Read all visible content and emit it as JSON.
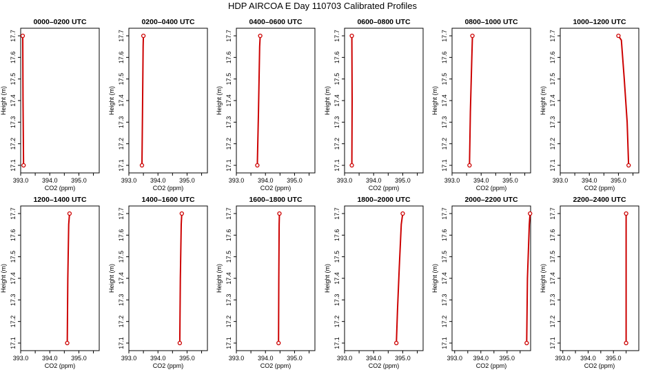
{
  "page_title": "HDP AIRCOA E  Day 110703  Calibrated Profiles",
  "chart_data": [
    {
      "type": "line",
      "title": "0000–0200 UTC",
      "xlabel": "CO2 (ppm)",
      "ylabel": "Height (m)",
      "xlim": [
        393.0,
        395.7
      ],
      "ylim": [
        17.1,
        17.7
      ],
      "xticks": [
        "393.0",
        "394.0",
        "395.0"
      ],
      "yticks": [
        "17.1",
        "17.2",
        "17.3",
        "17.4",
        "17.5",
        "17.6",
        "17.7"
      ],
      "series": [
        {
          "x": [
            393.1,
            393.08,
            393.07
          ],
          "y": [
            17.1,
            17.4,
            17.7
          ]
        }
      ]
    },
    {
      "type": "line",
      "title": "0200–0400 UTC",
      "xlabel": "CO2 (ppm)",
      "ylabel": "Height (m)",
      "xlim": [
        393.0,
        395.7
      ],
      "ylim": [
        17.1,
        17.7
      ],
      "xticks": [
        "393.0",
        "394.0",
        "395.0"
      ],
      "yticks": [
        "17.1",
        "17.2",
        "17.3",
        "17.4",
        "17.5",
        "17.6",
        "17.7"
      ],
      "series": [
        {
          "x": [
            393.45,
            393.47,
            393.49,
            393.5
          ],
          "y": [
            17.1,
            17.35,
            17.65,
            17.7
          ]
        }
      ]
    },
    {
      "type": "line",
      "title": "0400–0600 UTC",
      "xlabel": "CO2 (ppm)",
      "ylabel": "Height (m)",
      "xlim": [
        393.0,
        395.7
      ],
      "ylim": [
        17.1,
        17.7
      ],
      "xticks": [
        "393.0",
        "394.0",
        "395.0"
      ],
      "yticks": [
        "17.1",
        "17.2",
        "17.3",
        "17.4",
        "17.5",
        "17.6",
        "17.7"
      ],
      "series": [
        {
          "x": [
            393.72,
            393.76,
            393.8,
            393.82
          ],
          "y": [
            17.1,
            17.35,
            17.65,
            17.7
          ]
        }
      ]
    },
    {
      "type": "line",
      "title": "0600–0800 UTC",
      "xlabel": "CO2 (ppm)",
      "ylabel": "Height (m)",
      "xlim": [
        393.0,
        395.7
      ],
      "ylim": [
        17.1,
        17.7
      ],
      "xticks": [
        "393.0",
        "394.0",
        "395.0"
      ],
      "yticks": [
        "17.1",
        "17.2",
        "17.3",
        "17.4",
        "17.5",
        "17.6",
        "17.7"
      ],
      "series": [
        {
          "x": [
            393.25,
            393.26,
            393.25
          ],
          "y": [
            17.1,
            17.4,
            17.7
          ]
        }
      ]
    },
    {
      "type": "line",
      "title": "0800–1000 UTC",
      "xlabel": "CO2 (ppm)",
      "ylabel": "Height (m)",
      "xlim": [
        393.0,
        395.7
      ],
      "ylim": [
        17.1,
        17.7
      ],
      "xticks": [
        "393.0",
        "394.0",
        "395.0"
      ],
      "yticks": [
        "17.1",
        "17.2",
        "17.3",
        "17.4",
        "17.5",
        "17.6",
        "17.7"
      ],
      "series": [
        {
          "x": [
            393.6,
            393.63,
            393.68,
            393.7
          ],
          "y": [
            17.1,
            17.35,
            17.6,
            17.7
          ]
        }
      ]
    },
    {
      "type": "line",
      "title": "1000–1200 UTC",
      "xlabel": "CO2 (ppm)",
      "ylabel": "Height (m)",
      "xlim": [
        393.0,
        395.7
      ],
      "ylim": [
        17.1,
        17.7
      ],
      "xticks": [
        "393.0",
        "394.0",
        "395.0"
      ],
      "yticks": [
        "17.1",
        "17.2",
        "17.3",
        "17.4",
        "17.5",
        "17.6",
        "17.7"
      ],
      "series": [
        {
          "x": [
            395.35,
            395.3,
            395.2,
            395.1,
            395.0
          ],
          "y": [
            17.1,
            17.3,
            17.5,
            17.68,
            17.7
          ]
        }
      ]
    },
    {
      "type": "line",
      "title": "1200–1400 UTC",
      "xlabel": "CO2 (ppm)",
      "ylabel": "Height (m)",
      "xlim": [
        393.0,
        395.7
      ],
      "ylim": [
        17.1,
        17.7
      ],
      "xticks": [
        "393.0",
        "394.0",
        "395.0"
      ],
      "yticks": [
        "17.1",
        "17.2",
        "17.3",
        "17.4",
        "17.5",
        "17.6",
        "17.7"
      ],
      "series": [
        {
          "x": [
            394.6,
            394.62,
            394.65,
            394.68
          ],
          "y": [
            17.1,
            17.4,
            17.65,
            17.7
          ]
        }
      ]
    },
    {
      "type": "line",
      "title": "1400–1600 UTC",
      "xlabel": "CO2 (ppm)",
      "ylabel": "Height (m)",
      "xlim": [
        393.0,
        395.7
      ],
      "ylim": [
        17.1,
        17.7
      ],
      "xticks": [
        "393.0",
        "394.0",
        "395.0"
      ],
      "yticks": [
        "17.1",
        "17.2",
        "17.3",
        "17.4",
        "17.5",
        "17.6",
        "17.7"
      ],
      "series": [
        {
          "x": [
            394.75,
            394.77,
            394.8,
            394.82
          ],
          "y": [
            17.1,
            17.4,
            17.65,
            17.7
          ]
        }
      ]
    },
    {
      "type": "line",
      "title": "1600–1800 UTC",
      "xlabel": "CO2 (ppm)",
      "ylabel": "Height (m)",
      "xlim": [
        393.0,
        395.7
      ],
      "ylim": [
        17.1,
        17.7
      ],
      "xticks": [
        "393.0",
        "394.0",
        "395.0"
      ],
      "yticks": [
        "17.1",
        "17.2",
        "17.3",
        "17.4",
        "17.5",
        "17.6",
        "17.7"
      ],
      "series": [
        {
          "x": [
            394.45,
            394.46,
            394.47,
            394.48
          ],
          "y": [
            17.1,
            17.4,
            17.65,
            17.7
          ]
        }
      ]
    },
    {
      "type": "line",
      "title": "1800–2000 UTC",
      "xlabel": "CO2 (ppm)",
      "ylabel": "Height (m)",
      "xlim": [
        393.0,
        395.7
      ],
      "ylim": [
        17.1,
        17.7
      ],
      "xticks": [
        "393.0",
        "394.0",
        "395.0"
      ],
      "yticks": [
        "17.1",
        "17.2",
        "17.3",
        "17.4",
        "17.5",
        "17.6",
        "17.7"
      ],
      "series": [
        {
          "x": [
            394.78,
            394.82,
            394.88,
            394.95,
            395.0
          ],
          "y": [
            17.1,
            17.25,
            17.45,
            17.65,
            17.7
          ]
        }
      ]
    },
    {
      "type": "line",
      "title": "2000–2200 UTC",
      "xlabel": "CO2 (ppm)",
      "ylabel": "Height (m)",
      "xlim": [
        392.9,
        395.9
      ],
      "ylim": [
        17.1,
        17.7
      ],
      "xticks": [
        "393.0",
        "394.0",
        "395.0"
      ],
      "yticks": [
        "17.1",
        "17.2",
        "17.3",
        "17.4",
        "17.5",
        "17.6",
        "17.7"
      ],
      "series": [
        {
          "x": [
            395.75,
            395.78,
            395.85,
            395.88
          ],
          "y": [
            17.1,
            17.4,
            17.65,
            17.7
          ]
        }
      ]
    },
    {
      "type": "line",
      "title": "2200–2400 UTC",
      "xlabel": "CO2 (ppm)",
      "ylabel": "Height (m)",
      "xlim": [
        392.9,
        396.0
      ],
      "ylim": [
        17.1,
        17.7
      ],
      "xticks": [
        "393.0",
        "394.0",
        "395.0"
      ],
      "yticks": [
        "17.1",
        "17.2",
        "17.3",
        "17.4",
        "17.5",
        "17.6",
        "17.7"
      ],
      "series": [
        {
          "x": [
            395.5,
            395.5
          ],
          "y": [
            17.1,
            17.7
          ]
        }
      ]
    }
  ]
}
